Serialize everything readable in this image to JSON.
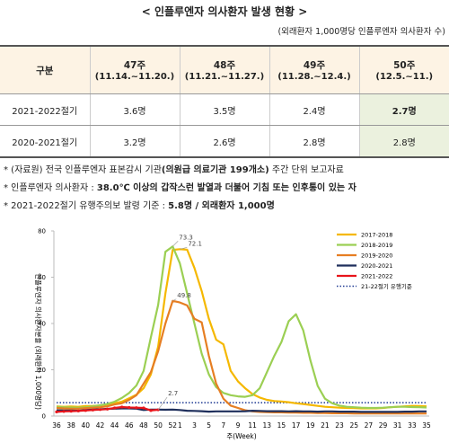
{
  "header": {
    "title": "< 인플루엔자 의사환자 발생 현황 >",
    "unit": "(외래환자 1,000명당 인플루엔자 의사환자 수)"
  },
  "table": {
    "header": [
      "구분",
      {
        "week": "47주",
        "range": "(11.14.~11.20.)"
      },
      {
        "week": "48주",
        "range": "(11.21.~11.27.)"
      },
      {
        "week": "49주",
        "range": "(11.28.~12.4.)"
      },
      {
        "week": "50주",
        "range": "(12.5.~11.)"
      }
    ],
    "rows": [
      [
        "2021-2022절기",
        "3.6명",
        "3.5명",
        "2.4명",
        "2.7명"
      ],
      [
        "2020-2021절기",
        "3.2명",
        "2.6명",
        "2.8명",
        "2.8명"
      ]
    ]
  },
  "notes": [
    [
      "* (자료원) 전국 인플루엔자 표본감시 기관",
      "(의원급 의료기관 199개소)",
      " 주간 단위 보고자료"
    ],
    [
      "* 인플루엔자 의사환자 : ",
      "38.0℃ 이상의 갑작스런 발열과 더불어 기침 또는 인후통이 있는 자"
    ],
    [
      "* 2021-2022절기 유행주의보 발령 기준 : ",
      "5.8명 / 외래환자 1,000명"
    ]
  ],
  "chart_data": {
    "type": "line",
    "y_label": "인플루엔자 의사환자분율 (외래환자 1,000명당)",
    "x_label": "주(Week)",
    "categories": [
      "36",
      null,
      "38",
      null,
      "40",
      null,
      "42",
      null,
      "44",
      null,
      "46",
      null,
      "48",
      null,
      "50",
      null,
      "52",
      "1",
      null,
      "3",
      null,
      "5",
      null,
      "7",
      null,
      "9",
      null,
      "11",
      null,
      "13",
      null,
      "15",
      null,
      "17",
      null,
      "19",
      null,
      "21",
      null,
      "23",
      null,
      "25",
      null,
      "27",
      null,
      "29",
      null,
      "31",
      null,
      "33",
      null,
      "35"
    ],
    "ylim": [
      0,
      80
    ],
    "yticks": [
      0,
      20,
      40,
      60,
      80
    ],
    "grid": false,
    "legend": "upper right",
    "series": [
      {
        "name": "2017-2018",
        "color": "#f5b800",
        "label_points": [
          17
        ],
        "values": [
          4.2,
          4.0,
          4.1,
          4.0,
          4.3,
          4.4,
          4.6,
          5.0,
          5.5,
          6.2,
          7.7,
          9.2,
          12.0,
          18.0,
          30.0,
          53.0,
          71.8,
          72.1,
          71.9,
          64.0,
          54.0,
          42.0,
          33.0,
          31.0,
          19.5,
          15.0,
          12.0,
          9.5,
          8.0,
          7.0,
          6.5,
          6.3,
          6.0,
          5.5,
          5.2,
          4.8,
          4.4,
          4.0,
          3.8,
          3.6,
          3.5,
          3.4,
          3.3,
          3.3,
          3.3,
          3.5,
          3.8,
          4.0,
          4.2,
          4.4,
          4.3,
          4.2
        ]
      },
      {
        "name": "2018-2019",
        "color": "#9bcf53",
        "label_points": [
          16
        ],
        "values": [
          4.0,
          3.8,
          3.7,
          3.6,
          3.8,
          4.2,
          4.7,
          5.2,
          6.2,
          7.8,
          10.0,
          13.2,
          19.5,
          34.0,
          48.0,
          71.0,
          73.3,
          66.0,
          53.0,
          40.0,
          27.0,
          18.0,
          12.5,
          10.0,
          9.0,
          8.5,
          8.3,
          9.0,
          12.0,
          19.0,
          26.0,
          32.0,
          41.0,
          44.0,
          37.0,
          24.0,
          13.0,
          7.5,
          5.5,
          4.5,
          4.0,
          3.8,
          3.6,
          3.5,
          3.5,
          3.6,
          3.8,
          4.0,
          4.0,
          3.9,
          3.8,
          3.7
        ]
      },
      {
        "name": "2019-2020",
        "color": "#e67e22",
        "label_points": [
          16
        ],
        "values": [
          3.5,
          3.3,
          3.2,
          3.2,
          3.4,
          3.6,
          3.8,
          4.2,
          5.0,
          5.5,
          7.0,
          9.0,
          14.0,
          19.0,
          28.0,
          40.0,
          49.8,
          49.1,
          47.8,
          42.0,
          40.5,
          26.0,
          14.0,
          7.5,
          4.5,
          3.5,
          2.5,
          2.0,
          1.8,
          1.7,
          1.6,
          1.6,
          1.5,
          1.5,
          1.4,
          1.4,
          1.3,
          1.3,
          1.2,
          1.2,
          1.2,
          1.1,
          1.1,
          1.1,
          1.1,
          1.1,
          1.1,
          1.1,
          1.1,
          1.1,
          1.1,
          1.1
        ]
      },
      {
        "name": "2020-2021",
        "color": "#1f2f5c",
        "label_points": [],
        "values": [
          2.5,
          2.4,
          2.4,
          2.3,
          2.6,
          2.8,
          2.9,
          3.1,
          3.2,
          3.3,
          3.3,
          3.2,
          2.6,
          2.8,
          2.8,
          2.7,
          2.8,
          2.6,
          2.3,
          2.2,
          2.1,
          1.9,
          2.0,
          2.0,
          2.0,
          2.0,
          2.1,
          2.3,
          2.2,
          2.1,
          2.1,
          2.1,
          2.0,
          2.1,
          2.0,
          2.0,
          1.9,
          2.0,
          2.0,
          1.9,
          1.9,
          1.9,
          1.8,
          1.8,
          1.8,
          1.8,
          1.8,
          1.8,
          1.9,
          1.9,
          2.0,
          2.0
        ]
      },
      {
        "name": "2021-2022",
        "color": "#e8141b",
        "label_points": [
          14
        ],
        "markers": true,
        "values": [
          1.8,
          2.0,
          2.1,
          2.2,
          2.4,
          2.6,
          2.8,
          3.0,
          3.5,
          3.9,
          3.7,
          3.6,
          3.5,
          2.4,
          2.7,
          null,
          null,
          null,
          null,
          null,
          null,
          null,
          null,
          null,
          null,
          null,
          null,
          null,
          null,
          null,
          null,
          null,
          null,
          null,
          null,
          null,
          null,
          null,
          null,
          null,
          null,
          null,
          null,
          null,
          null,
          null,
          null,
          null,
          null,
          null,
          null,
          null
        ]
      }
    ],
    "threshold": {
      "name": "21-22절기 유행기준",
      "value": 5.8,
      "color": "#1f3a93"
    }
  }
}
